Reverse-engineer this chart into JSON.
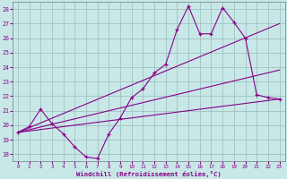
{
  "xlabel": "Windchill (Refroidissement éolien,°C)",
  "bg_color": "#c8e8e8",
  "line_color": "#880088",
  "grid_color": "#99bbbb",
  "ylim": [
    17.5,
    28.5
  ],
  "xlim": [
    -0.5,
    23.5
  ],
  "yticks": [
    18,
    19,
    20,
    21,
    22,
    23,
    24,
    25,
    26,
    27,
    28
  ],
  "xticks": [
    0,
    1,
    2,
    3,
    4,
    5,
    6,
    7,
    8,
    9,
    10,
    11,
    12,
    13,
    14,
    15,
    16,
    17,
    18,
    19,
    20,
    21,
    22,
    23
  ],
  "main_x": [
    0,
    1,
    2,
    3,
    4,
    5,
    6,
    7,
    8,
    9,
    10,
    11,
    12,
    13,
    14,
    15,
    16,
    17,
    18,
    19,
    20,
    21,
    22,
    23
  ],
  "main_y": [
    19.5,
    19.9,
    21.1,
    20.1,
    19.4,
    18.5,
    17.8,
    17.7,
    19.4,
    20.5,
    21.9,
    22.5,
    23.6,
    24.2,
    26.6,
    28.2,
    26.3,
    26.3,
    28.1,
    27.1,
    26.0,
    22.1,
    21.9,
    21.8
  ],
  "trend_lines": [
    {
      "x": [
        0,
        23
      ],
      "y": [
        19.5,
        21.8
      ]
    },
    {
      "x": [
        0,
        23
      ],
      "y": [
        19.5,
        27.0
      ]
    },
    {
      "x": [
        0,
        23
      ],
      "y": [
        19.5,
        23.8
      ]
    }
  ],
  "xlabel_color": "#880088",
  "tick_color": "#880088"
}
